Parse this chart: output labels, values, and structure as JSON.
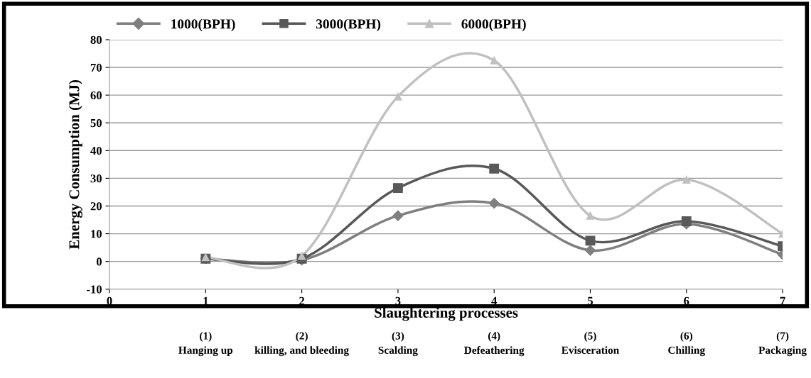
{
  "chart_data": {
    "type": "line",
    "xlabel": "Slaughtering processes",
    "ylabel": "Energy Consumption (MJ)",
    "x": [
      1,
      2,
      3,
      4,
      5,
      6,
      7
    ],
    "series": [
      {
        "name": "1000(BPH)",
        "color": "#7f7f7f",
        "marker": "diamond",
        "values": [
          1,
          0.5,
          16.5,
          21,
          4,
          13.5,
          2.5
        ]
      },
      {
        "name": "3000(BPH)",
        "color": "#595959",
        "marker": "square",
        "values": [
          1,
          1,
          26.5,
          33.5,
          7.5,
          14.5,
          5.5
        ]
      },
      {
        "name": "6000(BPH)",
        "color": "#c0c0c0",
        "marker": "triangle",
        "values": [
          1.5,
          2,
          59.5,
          72.5,
          16.5,
          29.5,
          10
        ]
      }
    ],
    "xlim": [
      0,
      7
    ],
    "xticks": [
      0,
      1,
      2,
      3,
      4,
      5,
      6,
      7
    ],
    "ylim": [
      -10,
      80
    ],
    "yticks": [
      -10,
      0,
      10,
      20,
      30,
      40,
      50,
      60,
      70,
      80
    ],
    "grid": "y",
    "legend": "top left",
    "line_style": "solid",
    "annotations": [
      "(1)\nHanging up",
      "(2)\nkilling, and bleeding",
      "(3)\nScalding",
      "(4)\nDefeathering",
      "(5)\nEvisceration",
      "(6)\nChilling",
      "(7)\nPackaging"
    ]
  }
}
